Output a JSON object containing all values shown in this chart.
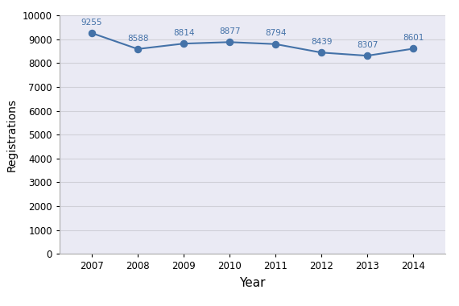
{
  "years": [
    2007,
    2008,
    2009,
    2010,
    2011,
    2012,
    2013,
    2014
  ],
  "values": [
    9255,
    8588,
    8814,
    8877,
    8794,
    8439,
    8307,
    8601
  ],
  "line_color": "#4472a8",
  "marker_color": "#4472a8",
  "xlabel": "Year",
  "ylabel": "Registrations",
  "ylim": [
    0,
    10000
  ],
  "ytick_step": 1000,
  "annotation_color": "#4472a8",
  "annotation_fontsize": 7.5,
  "xlabel_fontsize": 11,
  "ylabel_fontsize": 10,
  "tick_fontsize": 8.5,
  "grid_color": "#d0d0d8",
  "background_color": "#eaeaf4",
  "figure_facecolor": "#ffffff",
  "spine_color": "#aaaaaa"
}
